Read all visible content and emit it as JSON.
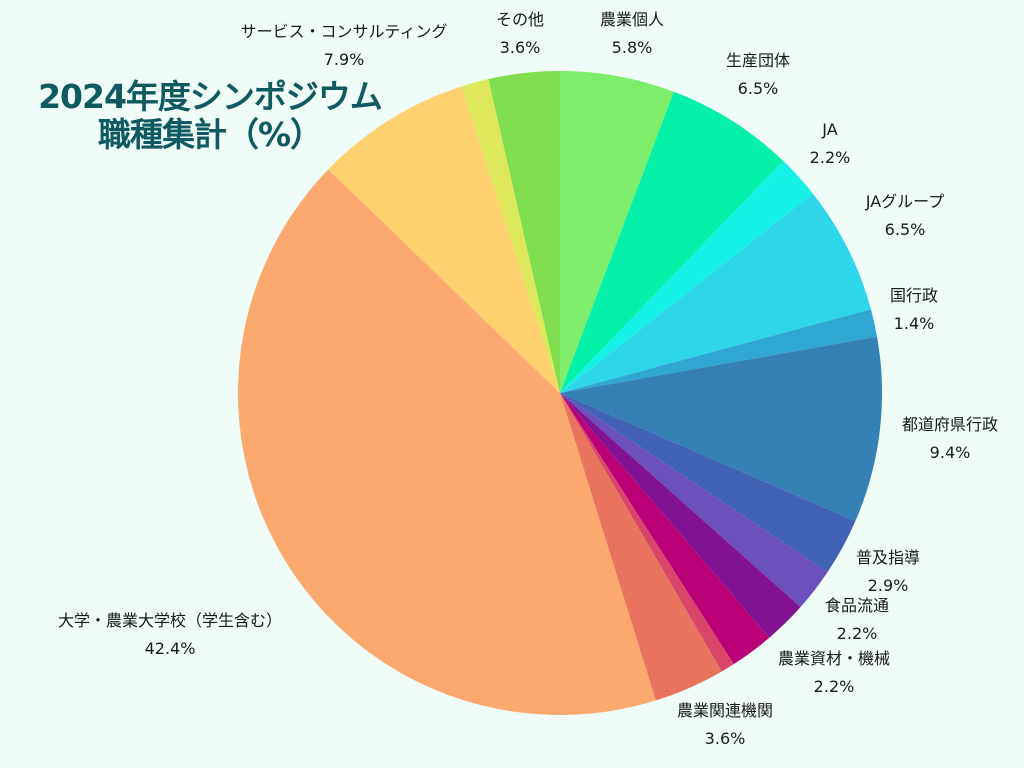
{
  "title": {
    "line1": "2024年度シンポジウム",
    "line2": "職種集計（%）"
  },
  "chart_data": {
    "type": "pie",
    "title": "2024年度シンポジウム 職種集計（%）",
    "start_angle_deg": 0,
    "direction": "clockwise",
    "slices": [
      {
        "label": "農業個人",
        "value": 5.8,
        "value_label": "5.8%",
        "color": "#7ded6b"
      },
      {
        "label": "生産団体",
        "value": 6.5,
        "value_label": "6.5%",
        "color": "#05f0a8"
      },
      {
        "label": "JA",
        "value": 2.2,
        "value_label": "2.2%",
        "color": "#16f1e8"
      },
      {
        "label": "JAグループ",
        "value": 6.5,
        "value_label": "6.5%",
        "color": "#2ed6ea"
      },
      {
        "label": "国行政",
        "value": 1.4,
        "value_label": "1.4%",
        "color": "#30a6d2"
      },
      {
        "label": "都道府県行政",
        "value": 9.4,
        "value_label": "9.4%",
        "color": "#3581b6"
      },
      {
        "label": "普及指導",
        "value": 2.9,
        "value_label": "2.9%",
        "color": "#4061b4"
      },
      {
        "label": "普及指導_sub",
        "value": 2.2,
        "value_label": "",
        "color": "#6b4fbb"
      },
      {
        "label": "食品流通",
        "value": 2.2,
        "value_label": "2.2%",
        "color": "#821493"
      },
      {
        "label": "農業資材・機械",
        "value": 2.2,
        "value_label": "2.2%",
        "color": "#bb0077"
      },
      {
        "label": "農業関連_sub",
        "value": 0.7,
        "value_label": "",
        "color": "#d8466a"
      },
      {
        "label": "農業関連機関",
        "value": 3.6,
        "value_label": "3.6%",
        "color": "#e8745e"
      },
      {
        "label": "大学・農業大学校（学生含む）",
        "value": 42.4,
        "value_label": "42.4%",
        "color": "#fca96f"
      },
      {
        "label": "サービス・コンサルティング",
        "value": 7.9,
        "value_label": "7.9%",
        "color": "#fed06f"
      },
      {
        "label": "その他_sub",
        "value": 1.4,
        "value_label": "",
        "color": "#dde85a"
      },
      {
        "label": "その他",
        "value": 3.6,
        "value_label": "3.6%",
        "color": "#80dd4f"
      }
    ]
  }
}
